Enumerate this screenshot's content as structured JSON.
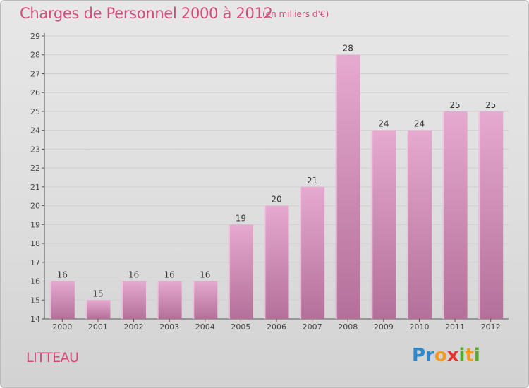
{
  "title": "Charges de Personnel 2000 à 2012",
  "subtitle": "(en milliers d'€)",
  "commune": "LITTEAU",
  "brand": {
    "letters": [
      "P",
      "r",
      "o",
      "x",
      "i",
      "t",
      "i"
    ],
    "colors": [
      "#2f88c9",
      "#2f88c9",
      "#f29a1f",
      "#e5322d",
      "#58a92d",
      "#f29a1f",
      "#58a92d"
    ]
  },
  "colors": {
    "title": "#d24b7c",
    "bar_top": "#e6a9cf",
    "bar_bottom": "#b4709a",
    "grid": "#cfcfcf"
  },
  "chart_data": {
    "type": "bar",
    "categories": [
      "2000",
      "2001",
      "2002",
      "2003",
      "2004",
      "2005",
      "2006",
      "2007",
      "2008",
      "2009",
      "2010",
      "2011",
      "2012"
    ],
    "values": [
      16,
      15,
      16,
      16,
      16,
      19,
      20,
      21,
      28,
      24,
      24,
      25,
      25
    ],
    "title": "Charges de Personnel 2000 à 2012",
    "ylim": [
      14,
      29
    ],
    "yticks": [
      14,
      15,
      16,
      17,
      18,
      19,
      20,
      21,
      22,
      23,
      24,
      25,
      26,
      27,
      28,
      29
    ],
    "grid": true,
    "legend": "none"
  }
}
